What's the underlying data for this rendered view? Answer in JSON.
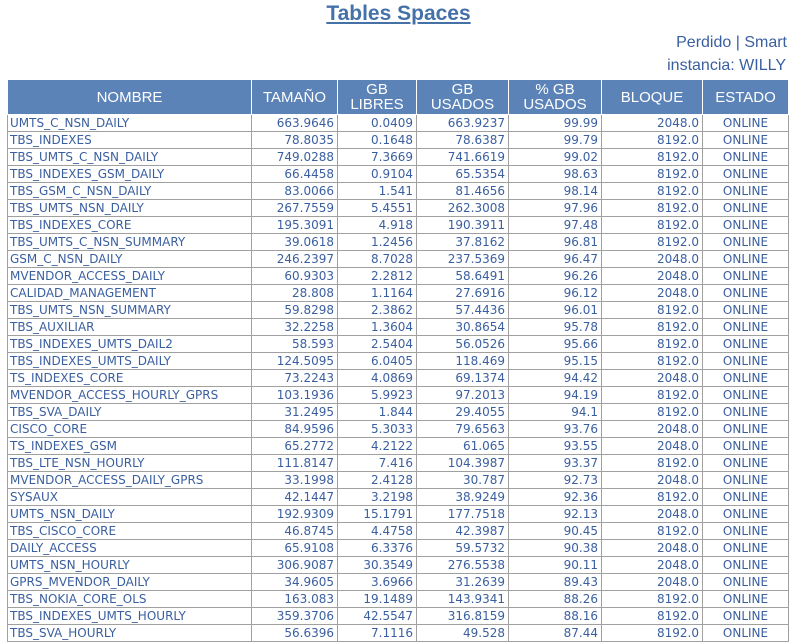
{
  "page": {
    "title": "Tables Spaces",
    "user_label": "Perdido | Smart",
    "instance_label": "instancia: WILLY"
  },
  "table": {
    "headers": [
      "NOMBRE",
      "TAMAÑO",
      "GB LIBRES",
      "GB USADOS",
      "% GB USADOS",
      "BLOQUE",
      "ESTADO"
    ],
    "rows": [
      [
        "UMTS_C_NSN_DAILY",
        "663.9646",
        "0.0409",
        "663.9237",
        "99.99",
        "2048.0",
        "ONLINE"
      ],
      [
        "TBS_INDEXES",
        "78.8035",
        "0.1648",
        "78.6387",
        "99.79",
        "8192.0",
        "ONLINE"
      ],
      [
        "TBS_UMTS_C_NSN_DAILY",
        "749.0288",
        "7.3669",
        "741.6619",
        "99.02",
        "8192.0",
        "ONLINE"
      ],
      [
        "TBS_INDEXES_GSM_DAILY",
        "66.4458",
        "0.9104",
        "65.5354",
        "98.63",
        "8192.0",
        "ONLINE"
      ],
      [
        "TBS_GSM_C_NSN_DAILY",
        "83.0066",
        "1.541",
        "81.4656",
        "98.14",
        "8192.0",
        "ONLINE"
      ],
      [
        "TBS_UMTS_NSN_DAILY",
        "267.7559",
        "5.4551",
        "262.3008",
        "97.96",
        "8192.0",
        "ONLINE"
      ],
      [
        "TBS_INDEXES_CORE",
        "195.3091",
        "4.918",
        "190.3911",
        "97.48",
        "8192.0",
        "ONLINE"
      ],
      [
        "TBS_UMTS_C_NSN_SUMMARY",
        "39.0618",
        "1.2456",
        "37.8162",
        "96.81",
        "8192.0",
        "ONLINE"
      ],
      [
        "GSM_C_NSN_DAILY",
        "246.2397",
        "8.7028",
        "237.5369",
        "96.47",
        "2048.0",
        "ONLINE"
      ],
      [
        "MVENDOR_ACCESS_DAILY",
        "60.9303",
        "2.2812",
        "58.6491",
        "96.26",
        "2048.0",
        "ONLINE"
      ],
      [
        "CALIDAD_MANAGEMENT",
        "28.808",
        "1.1164",
        "27.6916",
        "96.12",
        "2048.0",
        "ONLINE"
      ],
      [
        "TBS_UMTS_NSN_SUMMARY",
        "59.8298",
        "2.3862",
        "57.4436",
        "96.01",
        "8192.0",
        "ONLINE"
      ],
      [
        "TBS_AUXILIAR",
        "32.2258",
        "1.3604",
        "30.8654",
        "95.78",
        "8192.0",
        "ONLINE"
      ],
      [
        "TBS_INDEXES_UMTS_DAIL2",
        "58.593",
        "2.5404",
        "56.0526",
        "95.66",
        "8192.0",
        "ONLINE"
      ],
      [
        "TBS_INDEXES_UMTS_DAILY",
        "124.5095",
        "6.0405",
        "118.469",
        "95.15",
        "8192.0",
        "ONLINE"
      ],
      [
        "TS_INDEXES_CORE",
        "73.2243",
        "4.0869",
        "69.1374",
        "94.42",
        "2048.0",
        "ONLINE"
      ],
      [
        "MVENDOR_ACCESS_HOURLY_GPRS",
        "103.1936",
        "5.9923",
        "97.2013",
        "94.19",
        "8192.0",
        "ONLINE"
      ],
      [
        "TBS_SVA_DAILY",
        "31.2495",
        "1.844",
        "29.4055",
        "94.1",
        "8192.0",
        "ONLINE"
      ],
      [
        "CISCO_CORE",
        "84.9596",
        "5.3033",
        "79.6563",
        "93.76",
        "2048.0",
        "ONLINE"
      ],
      [
        "TS_INDEXES_GSM",
        "65.2772",
        "4.2122",
        "61.065",
        "93.55",
        "2048.0",
        "ONLINE"
      ],
      [
        "TBS_LTE_NSN_HOURLY",
        "111.8147",
        "7.416",
        "104.3987",
        "93.37",
        "8192.0",
        "ONLINE"
      ],
      [
        "MVENDOR_ACCESS_DAILY_GPRS",
        "33.1998",
        "2.4128",
        "30.787",
        "92.73",
        "2048.0",
        "ONLINE"
      ],
      [
        "SYSAUX",
        "42.1447",
        "3.2198",
        "38.9249",
        "92.36",
        "8192.0",
        "ONLINE"
      ],
      [
        "UMTS_NSN_DAILY",
        "192.9309",
        "15.1791",
        "177.7518",
        "92.13",
        "2048.0",
        "ONLINE"
      ],
      [
        "TBS_CISCO_CORE",
        "46.8745",
        "4.4758",
        "42.3987",
        "90.45",
        "8192.0",
        "ONLINE"
      ],
      [
        "DAILY_ACCESS",
        "65.9108",
        "6.3376",
        "59.5732",
        "90.38",
        "2048.0",
        "ONLINE"
      ],
      [
        "UMTS_NSN_HOURLY",
        "306.9087",
        "30.3549",
        "276.5538",
        "90.11",
        "2048.0",
        "ONLINE"
      ],
      [
        "GPRS_MVENDOR_DAILY",
        "34.9605",
        "3.6966",
        "31.2639",
        "89.43",
        "2048.0",
        "ONLINE"
      ],
      [
        "TBS_NOKIA_CORE_OLS",
        "163.083",
        "19.1489",
        "143.9341",
        "88.26",
        "8192.0",
        "ONLINE"
      ],
      [
        "TBS_INDEXES_UMTS_HOURLY",
        "359.3706",
        "42.5547",
        "316.8159",
        "88.16",
        "8192.0",
        "ONLINE"
      ],
      [
        "TBS_SVA_HOURLY",
        "56.6396",
        "7.1116",
        "49.528",
        "87.44",
        "8192.0",
        "ONLINE"
      ]
    ]
  }
}
